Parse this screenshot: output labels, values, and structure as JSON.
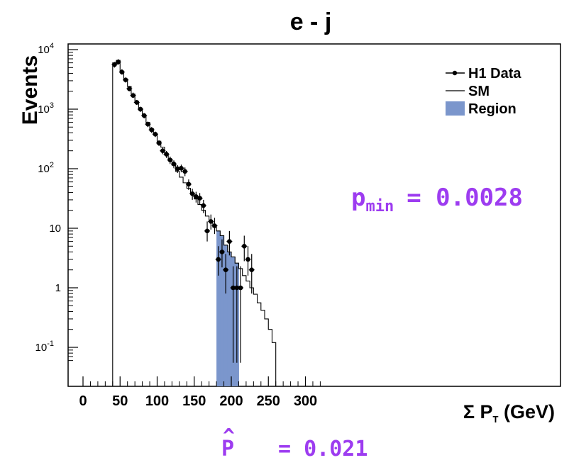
{
  "chart_data": {
    "type": "histogram",
    "title": "e - j",
    "xlabel": "Σ P_T (GeV)",
    "ylabel": "Events",
    "xlim": [
      0,
      320
    ],
    "ylim": [
      0.055,
      10000
    ],
    "y_log_scale": true,
    "x_ticks": [
      0,
      50,
      100,
      150,
      200,
      250,
      300
    ],
    "y_ticks": [
      {
        "value": 0.1,
        "label": "10",
        "exp": "-1"
      },
      {
        "value": 1,
        "label": "1",
        "exp": ""
      },
      {
        "value": 10,
        "label": "10",
        "exp": ""
      },
      {
        "value": 100,
        "label": "10",
        "exp": "2"
      },
      {
        "value": 1000,
        "label": "10",
        "exp": "3"
      },
      {
        "value": 10000,
        "label": "10",
        "exp": "4"
      }
    ],
    "legend": {
      "position": "top-right",
      "entries": [
        {
          "label": "H1 Data",
          "style": "data-point"
        },
        {
          "label": "SM",
          "style": "line"
        },
        {
          "label": "Region",
          "style": "fill",
          "color": "#7b96cc"
        }
      ]
    },
    "sm_histogram": {
      "bin_edges": [
        40,
        45,
        50,
        55,
        60,
        65,
        70,
        75,
        80,
        85,
        90,
        95,
        100,
        105,
        110,
        115,
        120,
        125,
        130,
        135,
        140,
        145,
        150,
        155,
        160,
        165,
        170,
        175,
        180,
        185,
        190,
        195,
        200,
        205,
        210,
        215,
        220,
        225,
        230,
        235,
        240,
        245,
        250,
        255,
        260
      ],
      "values": [
        6000,
        6600,
        4300,
        3200,
        2400,
        1800,
        1350,
        1000,
        780,
        600,
        470,
        370,
        290,
        230,
        180,
        140,
        115,
        90,
        72,
        58,
        47,
        38,
        31,
        25,
        20,
        16,
        13,
        10.5,
        9,
        7.5,
        5.2,
        4,
        3.3,
        2.6,
        2.1,
        1.6,
        1.3,
        1.0,
        0.78,
        0.56,
        0.42,
        0.3,
        0.2,
        0.12
      ]
    },
    "region": {
      "x_range": [
        180,
        210
      ],
      "bin_edges": [
        180,
        185,
        190,
        195,
        200,
        205,
        210
      ],
      "values": [
        9,
        7.5,
        5.2,
        4,
        3.3,
        2.6
      ],
      "color": "#7b96cc"
    },
    "data_points": [
      {
        "x": 42.5,
        "y": 5600,
        "lo": 5000,
        "hi": 6200
      },
      {
        "x": 47.5,
        "y": 6200,
        "lo": 5600,
        "hi": 6900
      },
      {
        "x": 52.5,
        "y": 4200,
        "lo": 3800,
        "hi": 4700
      },
      {
        "x": 57.5,
        "y": 3100,
        "lo": 2800,
        "hi": 3400
      },
      {
        "x": 62.5,
        "y": 2200,
        "lo": 2000,
        "hi": 2450
      },
      {
        "x": 67.5,
        "y": 1700,
        "lo": 1550,
        "hi": 1900
      },
      {
        "x": 72.5,
        "y": 1300,
        "lo": 1180,
        "hi": 1430
      },
      {
        "x": 77.5,
        "y": 1000,
        "lo": 900,
        "hi": 1100
      },
      {
        "x": 82.5,
        "y": 780,
        "lo": 700,
        "hi": 860
      },
      {
        "x": 87.5,
        "y": 560,
        "lo": 500,
        "hi": 620
      },
      {
        "x": 92.5,
        "y": 450,
        "lo": 400,
        "hi": 500
      },
      {
        "x": 97.5,
        "y": 380,
        "lo": 340,
        "hi": 420
      },
      {
        "x": 102.5,
        "y": 270,
        "lo": 240,
        "hi": 300
      },
      {
        "x": 107.5,
        "y": 200,
        "lo": 175,
        "hi": 225
      },
      {
        "x": 112.5,
        "y": 175,
        "lo": 152,
        "hi": 198
      },
      {
        "x": 117.5,
        "y": 140,
        "lo": 120,
        "hi": 160
      },
      {
        "x": 122.5,
        "y": 120,
        "lo": 102,
        "hi": 138
      },
      {
        "x": 127.5,
        "y": 100,
        "lo": 85,
        "hi": 115
      },
      {
        "x": 132.5,
        "y": 102,
        "lo": 87,
        "hi": 117
      },
      {
        "x": 137.5,
        "y": 90,
        "lo": 75,
        "hi": 105
      },
      {
        "x": 142.5,
        "y": 55,
        "lo": 44,
        "hi": 66
      },
      {
        "x": 147.5,
        "y": 38,
        "lo": 30,
        "hi": 46
      },
      {
        "x": 152.5,
        "y": 34,
        "lo": 27,
        "hi": 41
      },
      {
        "x": 157.5,
        "y": 32,
        "lo": 25,
        "hi": 39
      },
      {
        "x": 162.5,
        "y": 24,
        "lo": 18,
        "hi": 30
      },
      {
        "x": 167.5,
        "y": 9,
        "lo": 6,
        "hi": 13
      },
      {
        "x": 172.5,
        "y": 13,
        "lo": 9.5,
        "hi": 17
      },
      {
        "x": 177.5,
        "y": 11,
        "lo": 8,
        "hi": 15
      },
      {
        "x": 182.5,
        "y": 3,
        "lo": 1.6,
        "hi": 5
      },
      {
        "x": 187.5,
        "y": 4,
        "lo": 2.2,
        "hi": 6.5
      },
      {
        "x": 192.5,
        "y": 2,
        "lo": 0.8,
        "hi": 3.7
      },
      {
        "x": 197.5,
        "y": 6,
        "lo": 3.5,
        "hi": 9
      },
      {
        "x": 202.5,
        "y": 1,
        "lo": 0.055,
        "hi": 2.3
      },
      {
        "x": 207.5,
        "y": 1,
        "lo": 0.055,
        "hi": 2.3
      },
      {
        "x": 212.5,
        "y": 1,
        "lo": 0.055,
        "hi": 2.3
      },
      {
        "x": 217.5,
        "y": 5,
        "lo": 2.8,
        "hi": 7.5
      },
      {
        "x": 222.5,
        "y": 3,
        "lo": 1.6,
        "hi": 5
      },
      {
        "x": 227.5,
        "y": 2,
        "lo": 0.8,
        "hi": 3.7
      }
    ]
  },
  "annotations": {
    "pmin_base": "p",
    "pmin_sub": "min",
    "pmin_eq": "= 0.0028",
    "phat_sym": "P",
    "phat_eq": "= 0.021"
  },
  "colors": {
    "annotation": "#9d3cf0",
    "region_fill": "#7b96cc"
  }
}
